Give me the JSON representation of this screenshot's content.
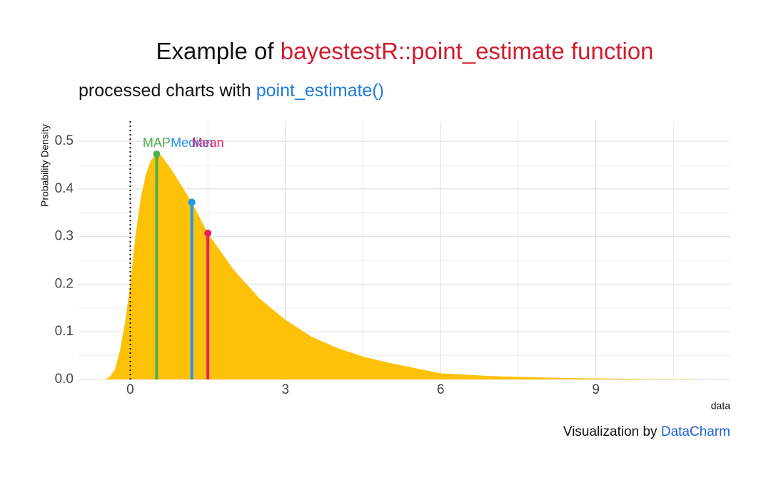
{
  "chart_data": {
    "type": "density",
    "title": [
      "Example of",
      "bayestestR::point_estimate function"
    ],
    "title_colors": [
      "#111111",
      "#d01c2e"
    ],
    "subtitle": [
      "processed charts with",
      "point_estimate()"
    ],
    "subtitle_colors": [
      "#111111",
      "#1e7be0"
    ],
    "caption": [
      "Visualization by",
      "DataCharm"
    ],
    "caption_colors": [
      "#111111",
      "#1a62d8"
    ],
    "x_label": "data",
    "y_label": "Probability Density",
    "x": [
      -0.5,
      -0.4,
      -0.3,
      -0.2,
      -0.1,
      0,
      0.1,
      0.2,
      0.3,
      0.4,
      0.5,
      0.6,
      0.8,
      1.0,
      1.2,
      1.5,
      2.0,
      2.5,
      3.0,
      3.5,
      4.0,
      4.5,
      5.0,
      6.0,
      7.0,
      8.0,
      9.0,
      10.0,
      11.0
    ],
    "values": [
      0,
      0.005,
      0.02,
      0.06,
      0.12,
      0.2,
      0.3,
      0.38,
      0.43,
      0.46,
      0.472,
      0.47,
      0.44,
      0.405,
      0.37,
      0.307,
      0.23,
      0.17,
      0.125,
      0.09,
      0.066,
      0.048,
      0.035,
      0.013,
      0.007,
      0.004,
      0.002,
      0.001,
      0.0005
    ],
    "color": "#fdc107",
    "estimates": [
      {
        "name": "MAP",
        "x": 0.51,
        "y": 0.473,
        "color": "#4caf50"
      },
      {
        "name": "Median",
        "x": 1.19,
        "y": 0.372,
        "color": "#2196f3"
      },
      {
        "name": "Mean",
        "x": 1.5,
        "y": 0.307,
        "color": "#e91e63"
      }
    ],
    "vline": 0,
    "xlim": [
      -1.0,
      11.6
    ],
    "ylim": [
      0,
      0.542
    ],
    "xticks": [
      0,
      3,
      6,
      9
    ],
    "yticks": [
      {
        "value": 0,
        "label": "0.0"
      },
      0.1,
      0.2,
      0.3,
      0.4,
      0.5
    ],
    "x_minor_grid": [
      1.5,
      4.5,
      7.5,
      10.5
    ],
    "y_minor_grid": [
      0.05,
      0.15,
      0.25,
      0.35,
      0.45
    ],
    "grid": true
  }
}
